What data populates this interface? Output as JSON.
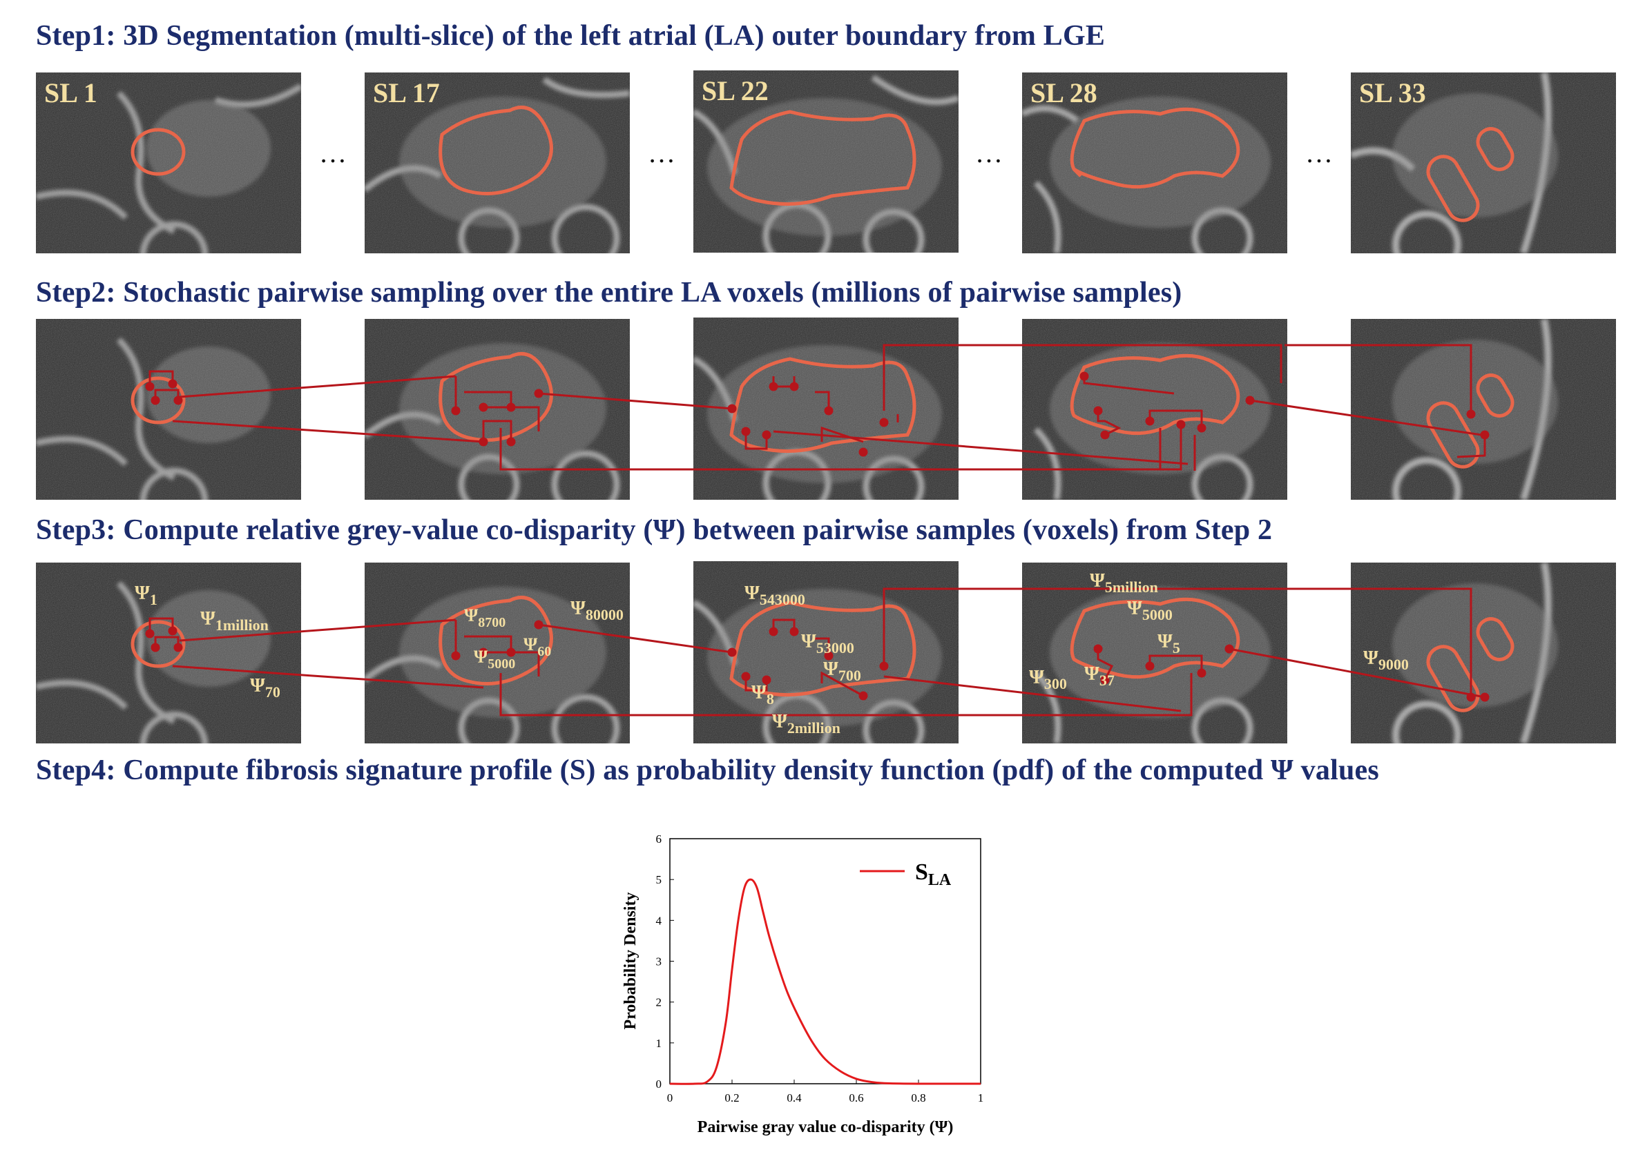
{
  "steps": [
    {
      "label": "Step1: 3D Segmentation (multi-slice) of the left atrial (LA) outer boundary from LGE"
    },
    {
      "label": "Step2: Stochastic pairwise sampling over the entire LA voxels (millions of pairwise samples)"
    },
    {
      "label": "Step3: Compute relative grey-value co-disparity (Ψ) between pairwise samples (voxels) from Step 2"
    },
    {
      "label": "Step4: Compute fibrosis signature profile (S) as probability density function (pdf) of the computed Ψ values"
    }
  ],
  "slices": [
    {
      "label": "SL 1"
    },
    {
      "label": "SL 17"
    },
    {
      "label": "SL 22"
    },
    {
      "label": "SL 28"
    },
    {
      "label": "SL 33"
    }
  ],
  "ellipsis": "…",
  "psi_labels": [
    {
      "sub": "1"
    },
    {
      "sub": "1million"
    },
    {
      "sub": "70"
    },
    {
      "sub": "8700"
    },
    {
      "sub": "80000"
    },
    {
      "sub": "60"
    },
    {
      "sub": "5000"
    },
    {
      "sub": "543000"
    },
    {
      "sub": "53000"
    },
    {
      "sub": "700"
    },
    {
      "sub": "8"
    },
    {
      "sub": "2million"
    },
    {
      "sub": "5million"
    },
    {
      "sub": "5000"
    },
    {
      "sub": "5"
    },
    {
      "sub": "300"
    },
    {
      "sub": "37"
    },
    {
      "sub": "9000"
    }
  ],
  "psi_symbol": "Ψ",
  "colors": {
    "title": "#1c2c6c",
    "contour": "#e8664a",
    "sample_line": "#b5151b",
    "psi_text": "#f3dfa2",
    "curve": "#e41a1c"
  },
  "chart_data": {
    "type": "line",
    "xlabel": "Pairwise gray value co-disparity (Ψ)",
    "ylabel": "Probability Density",
    "xlim": [
      0,
      1
    ],
    "ylim": [
      0,
      6
    ],
    "xticks": [
      "0",
      "0.2",
      "0.4",
      "0.6",
      "0.8",
      "1"
    ],
    "yticks": [
      "0",
      "1",
      "2",
      "3",
      "4",
      "5",
      "6"
    ],
    "legend": {
      "position": "top-right",
      "main": "S",
      "sub": "LA"
    },
    "series": [
      {
        "name": "SLA",
        "x": [
          0,
          0.08,
          0.12,
          0.15,
          0.18,
          0.2,
          0.22,
          0.24,
          0.26,
          0.28,
          0.3,
          0.32,
          0.35,
          0.38,
          0.42,
          0.46,
          0.5,
          0.55,
          0.6,
          0.65,
          0.7,
          0.8,
          1.0
        ],
        "y": [
          0,
          0.0,
          0.05,
          0.4,
          1.5,
          2.8,
          4.0,
          4.8,
          5.0,
          4.8,
          4.2,
          3.6,
          2.85,
          2.2,
          1.55,
          1.0,
          0.6,
          0.3,
          0.12,
          0.04,
          0.01,
          0.0,
          0.0
        ]
      }
    ]
  }
}
